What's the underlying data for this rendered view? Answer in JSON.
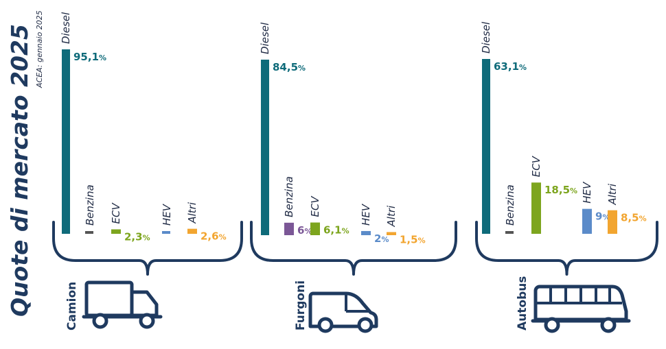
{
  "title": "Quote di mercato 2025",
  "source": "ACEA: gennaio 2025",
  "colors": {
    "Diesel": "#0f6b7a",
    "Benzina": "#555555",
    "ECV": "#7da51e",
    "HEV": "#5b8bc9",
    "Altri": "#f2a530",
    "Benzina_furgoni": "#7b5796",
    "text": "#1f2a44",
    "icon": "#1f3a5f"
  },
  "chart_data": [
    {
      "type": "bar",
      "group": "Camion",
      "categories": [
        "Diesel",
        "Benzina",
        "ECV",
        "HEV",
        "Altri"
      ],
      "values": [
        95.1,
        0,
        2.3,
        0,
        2.6
      ],
      "value_labels": [
        "95,1",
        "",
        "2,3",
        "",
        "2,6"
      ],
      "unit": "%",
      "icon": "truck-icon"
    },
    {
      "type": "bar",
      "group": "Furgoni",
      "categories": [
        "Diesel",
        "Benzina",
        "ECV",
        "HEV",
        "Altri"
      ],
      "values": [
        84.5,
        6,
        6.1,
        2,
        1.5
      ],
      "value_labels": [
        "84,5",
        "6",
        "6,1",
        "2",
        "1,5"
      ],
      "unit": "%",
      "icon": "van-icon"
    },
    {
      "type": "bar",
      "group": "Autobus",
      "categories": [
        "Diesel",
        "Benzina",
        "ECV",
        "HEV",
        "Altri"
      ],
      "values": [
        63.1,
        0,
        18.5,
        9,
        8.5
      ],
      "value_labels": [
        "63,1",
        "",
        "18,5",
        "9",
        "8,5"
      ],
      "unit": "%",
      "icon": "bus-icon"
    }
  ]
}
